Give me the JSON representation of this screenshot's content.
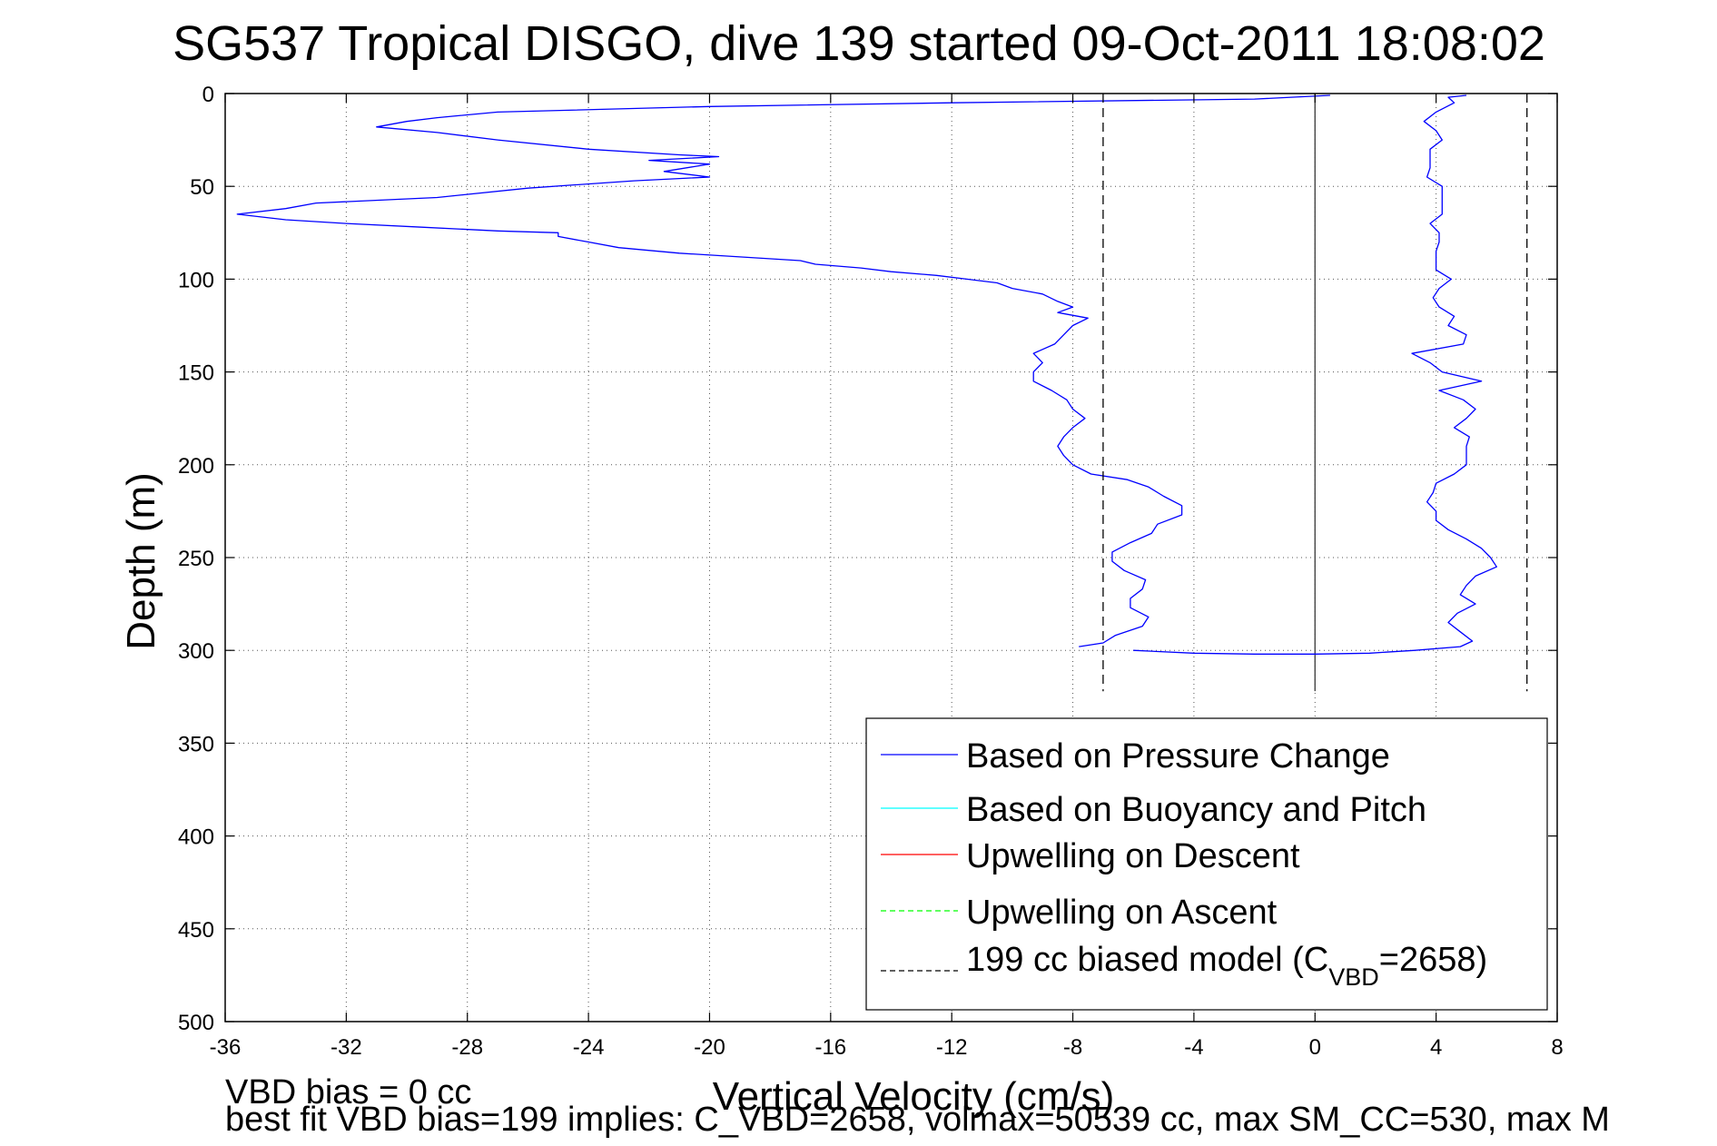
{
  "chart_data": {
    "type": "line",
    "title": "SG537 Tropical DISGO, dive 139 started 09-Oct-2011 18:08:02",
    "xlabel": "Vertical Velocity (cm/s)",
    "ylabel": "Depth (m)",
    "xlim": [
      -36,
      8
    ],
    "ylim": [
      0,
      500
    ],
    "y_reversed": true,
    "grid": true,
    "xticks": [
      "-36",
      "-32",
      "-28",
      "-24",
      "-20",
      "-16",
      "-12",
      "-8",
      "-4",
      "0",
      "4",
      "8"
    ],
    "yticks": [
      "0",
      "50",
      "100",
      "150",
      "200",
      "250",
      "300",
      "350",
      "400",
      "450",
      "500"
    ],
    "legend_placement": "bottom-right",
    "legend": [
      {
        "label": "Based on Pressure Change",
        "color": "#0000ff",
        "style": "solid"
      },
      {
        "label": "Based on Buoyancy and Pitch",
        "color": "#00ffff",
        "style": "solid"
      },
      {
        "label": "Upwelling on Descent",
        "color": "#ff0000",
        "style": "solid"
      },
      {
        "label": "Upwelling on Ascent",
        "color": "#00ff00",
        "style": "dashed"
      },
      {
        "label_prefix": "199 cc biased model (C",
        "label_sub": "VBD",
        "label_suffix": "=2658)",
        "color": "#000000",
        "style": "dashed"
      }
    ],
    "series": [
      {
        "name": "Based on Pressure Change",
        "segment": "descent",
        "color": "#0000ff",
        "points": [
          [
            0.5,
            1
          ],
          [
            -2,
            3
          ],
          [
            -12,
            5
          ],
          [
            -20,
            7
          ],
          [
            -27,
            10
          ],
          [
            -29,
            13
          ],
          [
            -30,
            15
          ],
          [
            -31,
            18
          ],
          [
            -29,
            21
          ],
          [
            -27,
            25
          ],
          [
            -24,
            30
          ],
          [
            -21,
            33
          ],
          [
            -19.7,
            34
          ],
          [
            -22,
            36
          ],
          [
            -20,
            38
          ],
          [
            -21.5,
            42
          ],
          [
            -20,
            45
          ],
          [
            -22.5,
            47
          ],
          [
            -26,
            51
          ],
          [
            -29,
            56
          ],
          [
            -33,
            59
          ],
          [
            -34,
            62
          ],
          [
            -35.6,
            65
          ],
          [
            -34,
            68
          ],
          [
            -32,
            70
          ],
          [
            -29.5,
            72
          ],
          [
            -27,
            74
          ],
          [
            -25,
            75
          ],
          [
            -25,
            77
          ],
          [
            -24,
            80
          ],
          [
            -23,
            83
          ],
          [
            -21,
            86
          ],
          [
            -19,
            88
          ],
          [
            -17,
            90
          ],
          [
            -16.5,
            92
          ],
          [
            -15,
            94
          ],
          [
            -14,
            96
          ],
          [
            -12.5,
            98
          ],
          [
            -11.5,
            100
          ],
          [
            -10.5,
            102
          ],
          [
            -10,
            105
          ],
          [
            -9,
            108
          ],
          [
            -8.5,
            112
          ],
          [
            -8,
            115
          ],
          [
            -8.5,
            118
          ],
          [
            -7.5,
            121
          ],
          [
            -8,
            125
          ],
          [
            -8.3,
            130
          ],
          [
            -8.6,
            135
          ],
          [
            -9.3,
            140
          ],
          [
            -9,
            145
          ],
          [
            -9.3,
            150
          ],
          [
            -9.3,
            155
          ],
          [
            -8.7,
            160
          ],
          [
            -8.2,
            165
          ],
          [
            -8,
            170
          ],
          [
            -7.6,
            175
          ],
          [
            -8,
            180
          ],
          [
            -8.3,
            185
          ],
          [
            -8.5,
            190
          ],
          [
            -8.3,
            195
          ],
          [
            -8,
            200
          ],
          [
            -7.4,
            205
          ],
          [
            -6.2,
            208
          ],
          [
            -5.5,
            212
          ],
          [
            -5,
            217
          ],
          [
            -4.4,
            222
          ],
          [
            -4.4,
            227
          ],
          [
            -5.2,
            232
          ],
          [
            -5.4,
            237
          ],
          [
            -6.1,
            242
          ],
          [
            -6.7,
            247
          ],
          [
            -6.7,
            252
          ],
          [
            -6.3,
            257
          ],
          [
            -5.6,
            262
          ],
          [
            -5.7,
            267
          ],
          [
            -6.1,
            272
          ],
          [
            -6.1,
            277
          ],
          [
            -5.5,
            282
          ],
          [
            -5.7,
            287
          ],
          [
            -6.6,
            292
          ],
          [
            -7,
            296
          ],
          [
            -7.8,
            298
          ]
        ]
      },
      {
        "name": "Based on Pressure Change",
        "segment": "ascent",
        "color": "#0000ff",
        "points": [
          [
            -6,
            300
          ],
          [
            -4,
            301.5
          ],
          [
            -2,
            302
          ],
          [
            0,
            302
          ],
          [
            1.8,
            301.5
          ],
          [
            3.3,
            300
          ],
          [
            4.8,
            298
          ],
          [
            5.2,
            295
          ],
          [
            4.8,
            290
          ],
          [
            4.4,
            285
          ],
          [
            4.7,
            280
          ],
          [
            5.3,
            275
          ],
          [
            4.8,
            270
          ],
          [
            5,
            265
          ],
          [
            5.3,
            260
          ],
          [
            6,
            255
          ],
          [
            5.8,
            250
          ],
          [
            5.5,
            245
          ],
          [
            5,
            240
          ],
          [
            4.4,
            235
          ],
          [
            4,
            230
          ],
          [
            4,
            225
          ],
          [
            3.7,
            220
          ],
          [
            3.9,
            215
          ],
          [
            4,
            210
          ],
          [
            4.6,
            205
          ],
          [
            5,
            200
          ],
          [
            5,
            195
          ],
          [
            5,
            190
          ],
          [
            5.1,
            185
          ],
          [
            4.6,
            180
          ],
          [
            5,
            175
          ],
          [
            5.3,
            170
          ],
          [
            4.9,
            165
          ],
          [
            4.1,
            160
          ],
          [
            5.5,
            155
          ],
          [
            4.2,
            150
          ],
          [
            3.8,
            145
          ],
          [
            3.2,
            140
          ],
          [
            4.9,
            135
          ],
          [
            5,
            130
          ],
          [
            4.4,
            125
          ],
          [
            4.6,
            120
          ],
          [
            4.1,
            115
          ],
          [
            3.9,
            110
          ],
          [
            4.1,
            105
          ],
          [
            4.5,
            100
          ],
          [
            4,
            95
          ],
          [
            4,
            90
          ],
          [
            4,
            85
          ],
          [
            4.1,
            80
          ],
          [
            4.1,
            75
          ],
          [
            3.8,
            70
          ],
          [
            4.2,
            65
          ],
          [
            4.2,
            60
          ],
          [
            4.2,
            55
          ],
          [
            4.2,
            50
          ],
          [
            3.7,
            45
          ],
          [
            3.8,
            40
          ],
          [
            3.8,
            35
          ],
          [
            3.8,
            30
          ],
          [
            4.2,
            25
          ],
          [
            4,
            20
          ],
          [
            3.6,
            15
          ],
          [
            4,
            10
          ],
          [
            4.6,
            5
          ],
          [
            4.4,
            2
          ],
          [
            5,
            1
          ]
        ]
      },
      {
        "name": "199 cc biased model (C_VBD=2658)",
        "color": "#000000",
        "style": "dashed",
        "points": [
          [
            -7,
            0
          ],
          [
            -7,
            322
          ]
        ]
      },
      {
        "name": "199 cc biased model (C_VBD=2658)",
        "color": "#000000",
        "style": "dashed",
        "points": [
          [
            7,
            0
          ],
          [
            7,
            322
          ]
        ]
      }
    ],
    "annotations": [
      "VBD bias = 0 cc",
      "best fit VBD bias=199 implies: C_VBD=2658, volmax=50539 cc, max SM_CC=530, max M"
    ]
  }
}
